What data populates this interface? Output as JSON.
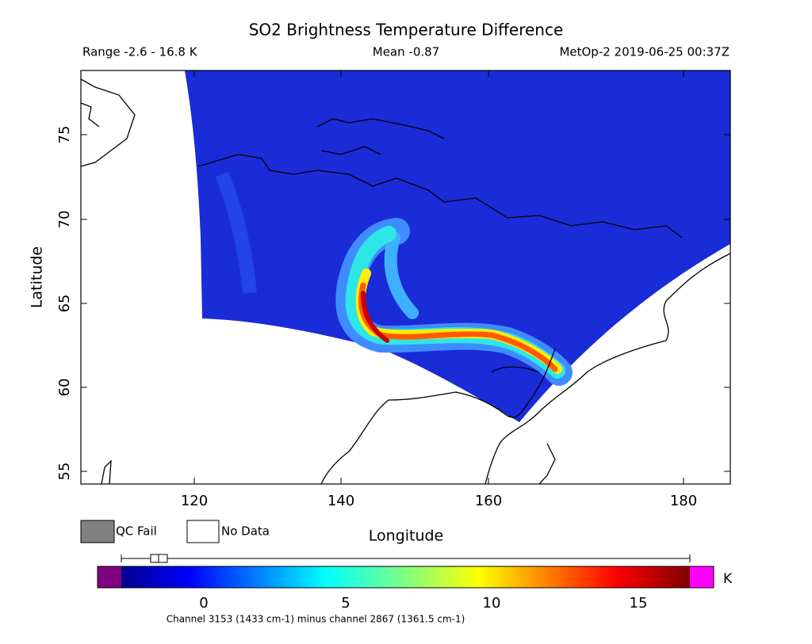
{
  "header": {
    "title": "SO2 Brightness Temperature Difference",
    "range": "Range -2.6 - 16.8 K",
    "mean": "Mean -0.87",
    "source": "MetOp-2 2019-06-25 00:37Z"
  },
  "map": {
    "x_axis_label": "Longitude",
    "y_axis_label": "Latitude",
    "longitude_ticks": [
      "120",
      "140",
      "160",
      "180"
    ],
    "latitude_ticks": [
      "75",
      "70",
      "65",
      "60",
      "55"
    ]
  },
  "legend": {
    "qc_fail": "QC Fail",
    "no_data": "No Data"
  },
  "colorbar": {
    "unit": "K",
    "ticks": [
      "0",
      "5",
      "10",
      "15"
    ],
    "caption": "Channel 3153 (1433 cm-1) minus channel 2867 (1361.5 cm-1)"
  }
}
